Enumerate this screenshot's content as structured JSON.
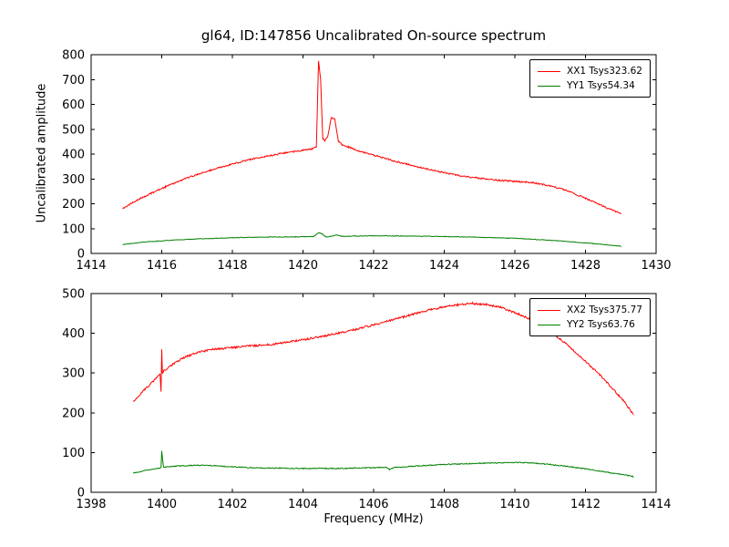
{
  "figure": {
    "title": "gl64, ID:147856 Uncalibrated On-source spectrum",
    "ylabel": "Uncalibrated amplitude",
    "xlabel": "Frequency (MHz)",
    "background": "#ffffff",
    "axis_color": "#000000"
  },
  "chart_data": [
    {
      "type": "line",
      "title": "gl64, ID:147856 Uncalibrated On-source spectrum",
      "xlabel": "",
      "ylabel": "Uncalibrated amplitude",
      "xlim": [
        1414,
        1430
      ],
      "ylim": [
        0,
        800
      ],
      "xticks": [
        1414,
        1416,
        1418,
        1420,
        1422,
        1424,
        1426,
        1428,
        1430
      ],
      "yticks": [
        0,
        100,
        200,
        300,
        400,
        500,
        600,
        700,
        800
      ],
      "grid": false,
      "legend_position": "upper right",
      "series": [
        {
          "name": "XX1 Tsys323.62",
          "color": "#ff0000",
          "noise": 3,
          "x": [
            1414.9,
            1415.3,
            1415.7,
            1416.1,
            1416.5,
            1417.0,
            1417.5,
            1418.0,
            1418.5,
            1419.0,
            1419.5,
            1420.0,
            1420.25,
            1420.38,
            1420.44,
            1420.5,
            1420.56,
            1420.62,
            1420.7,
            1420.8,
            1420.9,
            1421.0,
            1421.1,
            1421.3,
            1421.6,
            1422.0,
            1422.5,
            1423.0,
            1423.5,
            1424.0,
            1424.5,
            1425.0,
            1425.5,
            1426.0,
            1426.5,
            1427.0,
            1427.5,
            1428.0,
            1428.5,
            1429.0
          ],
          "y": [
            182,
            215,
            242,
            268,
            292,
            318,
            340,
            360,
            378,
            392,
            405,
            415,
            420,
            430,
            775,
            700,
            462,
            452,
            470,
            548,
            540,
            452,
            438,
            428,
            412,
            396,
            375,
            357,
            340,
            325,
            312,
            303,
            295,
            290,
            285,
            272,
            252,
            222,
            190,
            160
          ]
        },
        {
          "name": "YY1 Tsys54.34",
          "color": "#008000",
          "noise": 1.2,
          "x": [
            1414.9,
            1415.5,
            1416.0,
            1416.8,
            1417.5,
            1418.2,
            1419.0,
            1419.8,
            1420.3,
            1420.45,
            1420.55,
            1420.65,
            1420.8,
            1420.95,
            1421.1,
            1421.5,
            1422.0,
            1423.0,
            1424.0,
            1425.0,
            1426.0,
            1426.8,
            1427.5,
            1428.2,
            1429.0
          ],
          "y": [
            36,
            46,
            51,
            57,
            61,
            64,
            66,
            67,
            68,
            84,
            78,
            66,
            70,
            74,
            69,
            70,
            71,
            70,
            68,
            65,
            61,
            55,
            48,
            40,
            29
          ]
        }
      ]
    },
    {
      "type": "line",
      "title": "",
      "xlabel": "Frequency (MHz)",
      "ylabel": "",
      "xlim": [
        1398,
        1414
      ],
      "ylim": [
        0,
        500
      ],
      "xticks": [
        1398,
        1400,
        1402,
        1404,
        1406,
        1408,
        1410,
        1412,
        1414
      ],
      "yticks": [
        0,
        100,
        200,
        300,
        400,
        500
      ],
      "grid": false,
      "legend_position": "upper right",
      "series": [
        {
          "name": "XX2 Tsys375.77",
          "color": "#ff0000",
          "noise": 2.5,
          "x": [
            1399.2,
            1399.5,
            1399.8,
            1399.95,
            1399.98,
            1400.0,
            1400.02,
            1400.05,
            1400.3,
            1400.6,
            1401.0,
            1401.5,
            1402.0,
            1402.5,
            1403.0,
            1403.5,
            1404.0,
            1404.5,
            1405.0,
            1405.5,
            1406.0,
            1406.5,
            1407.0,
            1407.5,
            1408.0,
            1408.4,
            1408.8,
            1409.2,
            1409.6,
            1410.0,
            1410.4,
            1410.8,
            1411.2,
            1411.6,
            1412.0,
            1412.4,
            1412.8,
            1413.1,
            1413.35
          ],
          "y": [
            230,
            257,
            283,
            297,
            252,
            358,
            300,
            305,
            322,
            338,
            352,
            360,
            364,
            368,
            371,
            377,
            384,
            392,
            400,
            410,
            421,
            433,
            445,
            457,
            467,
            472,
            475,
            472,
            465,
            452,
            437,
            417,
            392,
            362,
            330,
            296,
            258,
            228,
            196
          ]
        },
        {
          "name": "YY2 Tsys63.76",
          "color": "#008000",
          "noise": 1.2,
          "x": [
            1399.2,
            1399.6,
            1399.9,
            1399.98,
            1400.0,
            1400.05,
            1400.4,
            1401.0,
            1401.5,
            1402.0,
            1402.5,
            1403.0,
            1404.0,
            1405.0,
            1406.0,
            1406.35,
            1406.45,
            1406.6,
            1407.0,
            1408.0,
            1409.0,
            1410.0,
            1410.5,
            1411.0,
            1411.5,
            1412.0,
            1412.5,
            1413.0,
            1413.35
          ],
          "y": [
            48,
            56,
            60,
            62,
            104,
            63,
            66,
            68,
            67,
            64,
            62,
            61,
            60,
            60,
            62,
            63,
            57,
            63,
            65,
            70,
            73,
            75,
            74,
            70,
            65,
            59,
            52,
            45,
            40
          ]
        }
      ]
    }
  ]
}
